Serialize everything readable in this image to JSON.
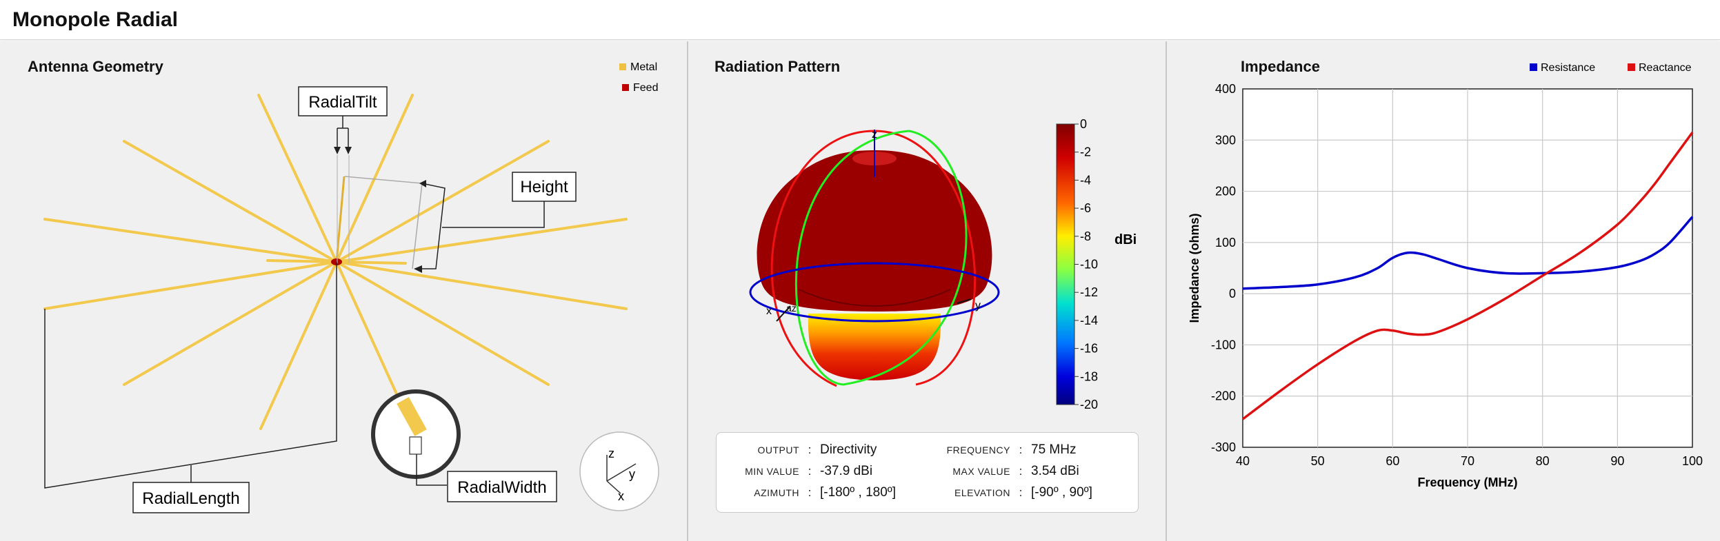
{
  "app": {
    "title": "Monopole Radial"
  },
  "geometry": {
    "title": "Antenna Geometry",
    "legend": [
      {
        "label": "Metal",
        "color": "#f0c040"
      },
      {
        "label": "Feed",
        "color": "#c00000"
      }
    ],
    "callouts": {
      "radial_tilt": "RadialTilt",
      "height": "Height",
      "radial_length": "RadialLength",
      "radial_width": "RadialWidth"
    },
    "axes": {
      "x": "x",
      "y": "y",
      "z": "z"
    }
  },
  "radiation": {
    "title": "Radiation Pattern",
    "colorbar": {
      "unit": "dBi",
      "ticks": [
        "0",
        "-2",
        "-4",
        "-6",
        "-8",
        "-10",
        "-12",
        "-14",
        "-16",
        "-18",
        "-20"
      ]
    },
    "axes": {
      "x": "x",
      "y": "y",
      "z": "z",
      "az": "az"
    },
    "info": {
      "output_label": "OUTPUT",
      "output_value": "Directivity",
      "frequency_label": "FREQUENCY",
      "frequency_value": "75 MHz",
      "min_label": "MIN VALUE",
      "min_value": "-37.9 dBi",
      "max_label": "MAX VALUE",
      "max_value": "3.54 dBi",
      "azimuth_label": "AZIMUTH",
      "azimuth_value": "[-180º , 180º]",
      "elevation_label": "ELEVATION",
      "elevation_value": "[-90º , 90º]",
      "separator": ":"
    }
  },
  "impedance": {
    "title": "Impedance",
    "chart_data": {
      "type": "line",
      "title": "Impedance",
      "xlabel": "Frequency (MHz)",
      "ylabel": "Impedance (ohms)",
      "xlim": [
        40,
        100
      ],
      "ylim": [
        -300,
        400
      ],
      "grid": true,
      "legend_position": "top-right",
      "x_ticks": [
        "40",
        "50",
        "60",
        "70",
        "80",
        "90",
        "100"
      ],
      "y_ticks": [
        "400",
        "300",
        "200",
        "100",
        "0",
        "-100",
        "-200",
        "-300"
      ],
      "x": [
        40,
        45,
        50,
        55,
        58,
        60,
        62,
        64,
        66,
        70,
        75,
        80,
        85,
        90,
        93,
        95,
        97,
        100
      ],
      "series": [
        {
          "name": "Resistance",
          "color": "#0000cc",
          "values": [
            10,
            13,
            18,
            32,
            50,
            70,
            80,
            77,
            68,
            50,
            40,
            40,
            43,
            52,
            64,
            78,
            100,
            150
          ]
        },
        {
          "name": "Reactance",
          "color": "#dd1111",
          "values": [
            -245,
            -190,
            -138,
            -92,
            -72,
            -72,
            -78,
            -80,
            -75,
            -50,
            -10,
            35,
            80,
            135,
            180,
            215,
            255,
            315
          ]
        }
      ]
    }
  }
}
